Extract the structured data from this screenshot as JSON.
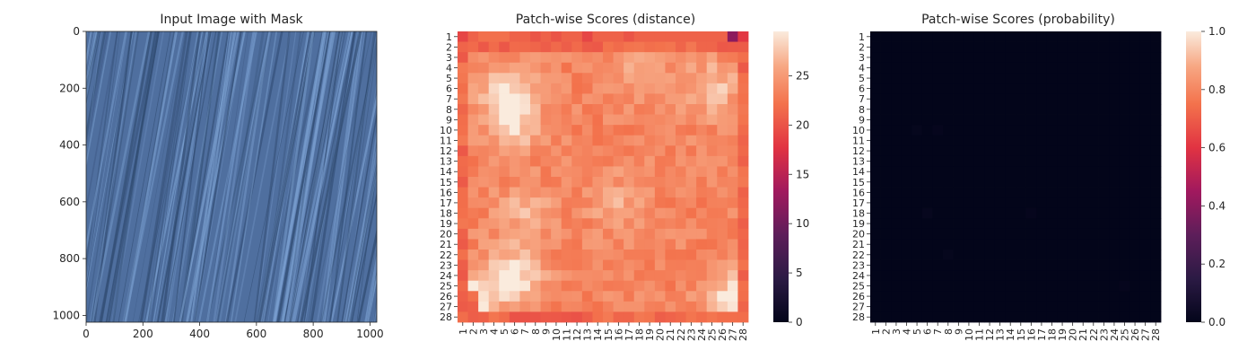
{
  "chart_data": [
    {
      "type": "image",
      "title": "Input Image with Mask",
      "xlim": [
        0,
        1024
      ],
      "ylim": [
        1024,
        0
      ],
      "xticks": [
        0,
        200,
        400,
        600,
        800,
        1000
      ],
      "yticks": [
        0,
        200,
        400,
        600,
        800,
        1000
      ],
      "base_color": "#4f6f9f",
      "streak_light": "#7a9fd0",
      "streak_dark": "#2f4a70"
    },
    {
      "type": "heatmap",
      "title": "Patch-wise Scores (distance)",
      "rows": 28,
      "cols": 28,
      "tick_labels": [
        "1",
        "2",
        "3",
        "4",
        "5",
        "6",
        "7",
        "8",
        "9",
        "10",
        "11",
        "12",
        "13",
        "14",
        "15",
        "16",
        "17",
        "18",
        "19",
        "20",
        "21",
        "22",
        "23",
        "24",
        "25",
        "26",
        "27",
        "28"
      ],
      "colorbar": {
        "min": 0,
        "max": 29.5,
        "ticks": [
          0,
          5,
          10,
          15,
          20,
          25
        ],
        "colormap": "rocket"
      },
      "border_value": 21.5,
      "top_row_values": [
        19,
        21,
        22,
        22,
        22,
        21,
        21,
        20,
        21,
        20,
        21,
        21,
        19,
        21,
        21,
        21,
        20,
        21,
        21,
        21,
        21,
        21,
        21,
        21,
        21,
        21,
        12,
        18
      ],
      "interior_baseline": 23.5,
      "hot_spots": [
        {
          "row": 6,
          "col": 5,
          "value": 28
        },
        {
          "row": 9,
          "col": 6,
          "value": 28.5
        },
        {
          "row": 6,
          "col": 25,
          "value": 27.5
        },
        {
          "row": 24,
          "col": 6,
          "value": 29
        },
        {
          "row": 26,
          "col": 2,
          "value": 29
        },
        {
          "row": 26,
          "col": 27,
          "value": 29
        },
        {
          "row": 4,
          "col": 18,
          "value": 26.5
        },
        {
          "row": 18,
          "col": 7,
          "value": 26.5
        },
        {
          "row": 17,
          "col": 16,
          "value": 26
        }
      ]
    },
    {
      "type": "heatmap",
      "title": "Patch-wise Scores (probability)",
      "rows": 28,
      "cols": 28,
      "tick_labels": [
        "1",
        "2",
        "3",
        "4",
        "5",
        "6",
        "7",
        "8",
        "9",
        "10",
        "11",
        "12",
        "13",
        "14",
        "15",
        "16",
        "17",
        "18",
        "19",
        "20",
        "21",
        "22",
        "23",
        "24",
        "25",
        "26",
        "27",
        "28"
      ],
      "colorbar": {
        "min": 0.0,
        "max": 1.0,
        "ticks": [
          "0.0",
          "0.2",
          "0.4",
          "0.6",
          "0.8",
          "1.0"
        ],
        "colormap": "rocket"
      },
      "all_values": 0.0,
      "faint_cells": [
        {
          "row": 10,
          "col": 5,
          "value": 0.012
        },
        {
          "row": 10,
          "col": 7,
          "value": 0.01
        },
        {
          "row": 18,
          "col": 6,
          "value": 0.015
        },
        {
          "row": 18,
          "col": 16,
          "value": 0.01
        },
        {
          "row": 22,
          "col": 8,
          "value": 0.012
        },
        {
          "row": 25,
          "col": 25,
          "value": 0.01
        }
      ]
    }
  ]
}
